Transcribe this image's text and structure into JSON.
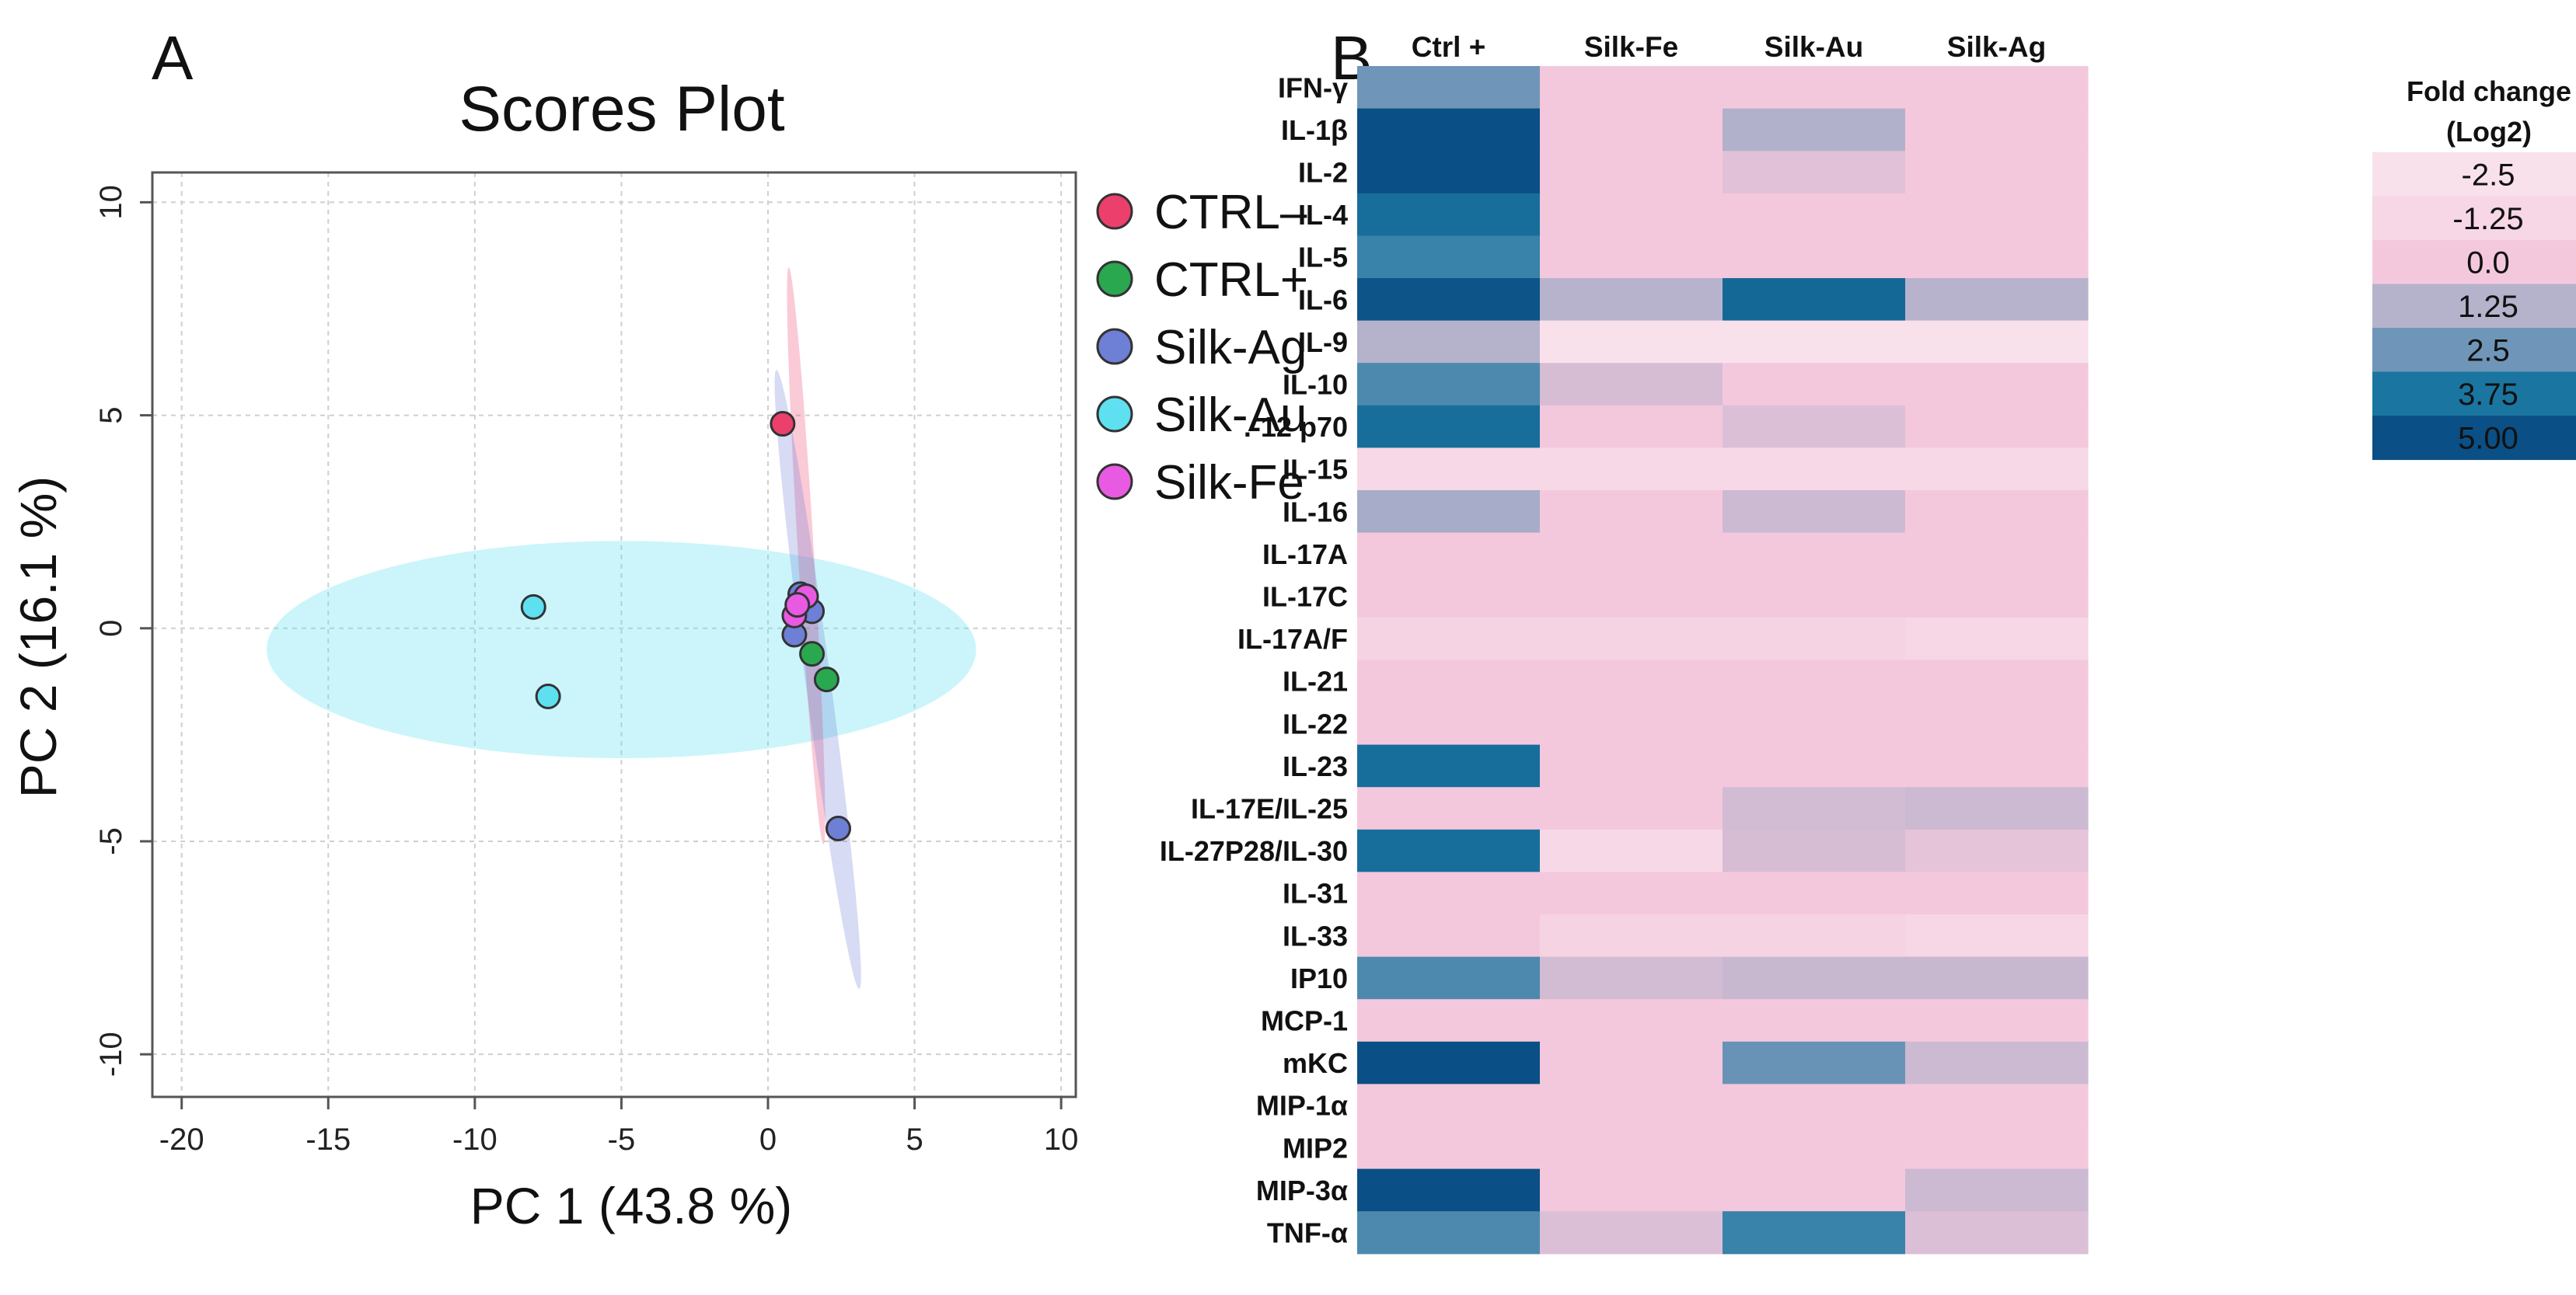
{
  "chart_data": [
    {
      "panel_label": "A",
      "type": "scatter",
      "title": "Scores Plot",
      "xlabel": "PC 1 (43.8 %)",
      "ylabel": "PC 2 (16.1 %)",
      "xlim": [
        -21,
        10.5
      ],
      "ylim": [
        -11,
        10.7
      ],
      "xticks": [
        -20,
        -15,
        -10,
        -5,
        0,
        5,
        10
      ],
      "yticks": [
        -10,
        -5,
        0,
        5,
        10
      ],
      "xtick_labels": [
        "-20",
        "-15",
        "-10",
        "-5",
        "0",
        "5",
        "10"
      ],
      "ytick_labels": [
        "-10",
        "-5",
        "0",
        "5",
        "10"
      ],
      "grid": true,
      "legend_position": "right",
      "series": [
        {
          "name": "CTRL–",
          "color": "#ec3f6c",
          "points": [
            {
              "x": 0.5,
              "y": 4.8
            }
          ],
          "ellipse": {
            "cx": 1.3,
            "cy": 1.7,
            "rx": 6.8,
            "ry": 0.27,
            "angle": -85
          }
        },
        {
          "name": "CTRL+",
          "color": "#2aa84f",
          "points": [
            {
              "x": 1.5,
              "y": -0.6
            },
            {
              "x": 2.0,
              "y": -1.2
            }
          ],
          "ellipse": null
        },
        {
          "name": "Silk-Ag",
          "color": "#6e7fd6",
          "points": [
            {
              "x": 2.4,
              "y": -4.7
            },
            {
              "x": 1.1,
              "y": 0.8
            },
            {
              "x": 1.5,
              "y": 0.4
            }
          ],
          "ellipse": {
            "cx": 1.7,
            "cy": -1.2,
            "rx": 7.4,
            "ry": 0.42,
            "angle": -79
          }
        },
        {
          "name": "Silk-Au",
          "color": "#5ee0f0",
          "points": [
            {
              "x": -8.0,
              "y": 0.5
            },
            {
              "x": -7.5,
              "y": -1.6
            }
          ],
          "ellipse": {
            "cx": -5.0,
            "cy": -0.5,
            "rx": 12.1,
            "ry": 2.55,
            "angle": 0
          }
        },
        {
          "name": "Silk-Fe",
          "color": "#e95ae3",
          "points": [
            {
              "x": 1.3,
              "y": 0.75
            },
            {
              "x": 0.9,
              "y": 0.3
            },
            {
              "x": 1.0,
              "y": 0.55
            }
          ],
          "ellipse": null
        }
      ],
      "extra_points": [
        {
          "x": 0.9,
          "y": -0.15,
          "color": "#6e7fd6"
        }
      ]
    },
    {
      "panel_label": "B",
      "type": "heatmap",
      "columns": [
        "Ctrl +",
        "Silk-Fe",
        "Silk-Au",
        "Silk-Ag"
      ],
      "rows": [
        "IFN-γ",
        "IL-1β",
        "IL-2",
        "IL-4",
        "IL-5",
        "IL-6",
        "IL-9",
        "IL-10",
        ".-12 p70",
        "IL-15",
        "IL-16",
        "IL-17A",
        "IL-17C",
        "IL-17A/F",
        "IL-21",
        "IL-22",
        "IL-23",
        "IL-17E/IL-25",
        "IL-27P28/IL-30",
        "IL-31",
        "IL-33",
        "IP10",
        "MCP-1",
        "mKC",
        "MIP-1α",
        "MIP2",
        "MIP-3α",
        "TNF-α"
      ],
      "values": [
        [
          2.5,
          0.0,
          0.0,
          0.0
        ],
        [
          5.0,
          0.0,
          1.3,
          0.0
        ],
        [
          5.0,
          0.0,
          0.4,
          0.0
        ],
        [
          4.0,
          0.0,
          0.0,
          0.0
        ],
        [
          3.3,
          0.0,
          0.0,
          0.0
        ],
        [
          4.8,
          1.2,
          4.2,
          1.2
        ],
        [
          1.25,
          -2.5,
          -2.5,
          -2.5
        ],
        [
          3.0,
          0.6,
          0.0,
          0.0
        ],
        [
          4.0,
          0.0,
          0.5,
          0.0
        ],
        [
          -1.5,
          -1.5,
          -1.5,
          -1.5
        ],
        [
          1.5,
          0.0,
          0.8,
          0.0
        ],
        [
          0.0,
          0.0,
          0.0,
          0.0
        ],
        [
          0.0,
          0.0,
          0.0,
          0.0
        ],
        [
          -1.0,
          -1.0,
          -1.0,
          -1.25
        ],
        [
          0.0,
          0.0,
          0.0,
          0.0
        ],
        [
          0.0,
          0.0,
          0.0,
          0.0
        ],
        [
          4.0,
          0.0,
          0.0,
          0.0
        ],
        [
          0.0,
          0.0,
          0.7,
          0.8
        ],
        [
          4.0,
          -1.5,
          0.6,
          0.3
        ],
        [
          0.0,
          0.0,
          0.0,
          0.0
        ],
        [
          0.0,
          -1.0,
          -1.0,
          -1.25
        ],
        [
          3.0,
          0.7,
          0.9,
          0.9
        ],
        [
          0.0,
          0.0,
          0.0,
          0.0
        ],
        [
          5.0,
          0.0,
          2.6,
          0.8
        ],
        [
          0.0,
          0.0,
          0.0,
          0.0
        ],
        [
          0.0,
          0.0,
          0.0,
          0.0
        ],
        [
          5.0,
          0.0,
          0.0,
          0.8
        ],
        [
          3.0,
          0.5,
          3.3,
          0.5
        ]
      ],
      "colorbar": {
        "title_line1": "Fold change",
        "title_line2": "(Log2)",
        "ticks": [
          "-2.5",
          "-1.25",
          "0.0",
          "1.25",
          "2.5",
          "3.75",
          "5.00"
        ],
        "tick_values": [
          -2.5,
          -1.25,
          0.0,
          1.25,
          2.5,
          3.75,
          5.0
        ],
        "colors": [
          "#f9e1ec",
          "#f7d6e5",
          "#f4c8dc",
          "#b5b2cc",
          "#6f96b8",
          "#1a76a0",
          "#0a4f85"
        ]
      }
    }
  ]
}
